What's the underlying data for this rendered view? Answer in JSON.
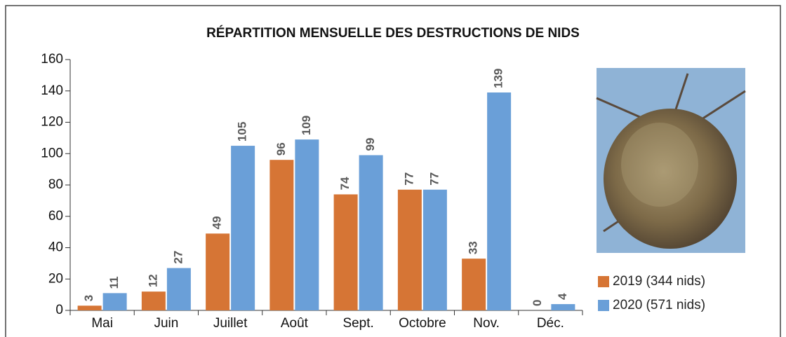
{
  "chart_data": {
    "type": "bar",
    "title": "RÉPARTITION MENSUELLE DES DESTRUCTIONS DE NIDS",
    "categories": [
      "Mai",
      "Juin",
      "Juillet",
      "Août",
      "Sept.",
      "Octobre",
      "Nov.",
      "Déc."
    ],
    "series": [
      {
        "name": "2019 (344 nids)",
        "color": "#d67535",
        "values": [
          3,
          12,
          49,
          96,
          74,
          77,
          33,
          0
        ]
      },
      {
        "name": "2020 (571 nids)",
        "color": "#6a9fd8",
        "values": [
          11,
          27,
          105,
          109,
          99,
          77,
          139,
          4
        ]
      }
    ],
    "ylim": [
      0,
      160
    ],
    "yticks": [
      0,
      20,
      40,
      60,
      80,
      100,
      120,
      140,
      160
    ],
    "legend": "right",
    "grid": false
  }
}
